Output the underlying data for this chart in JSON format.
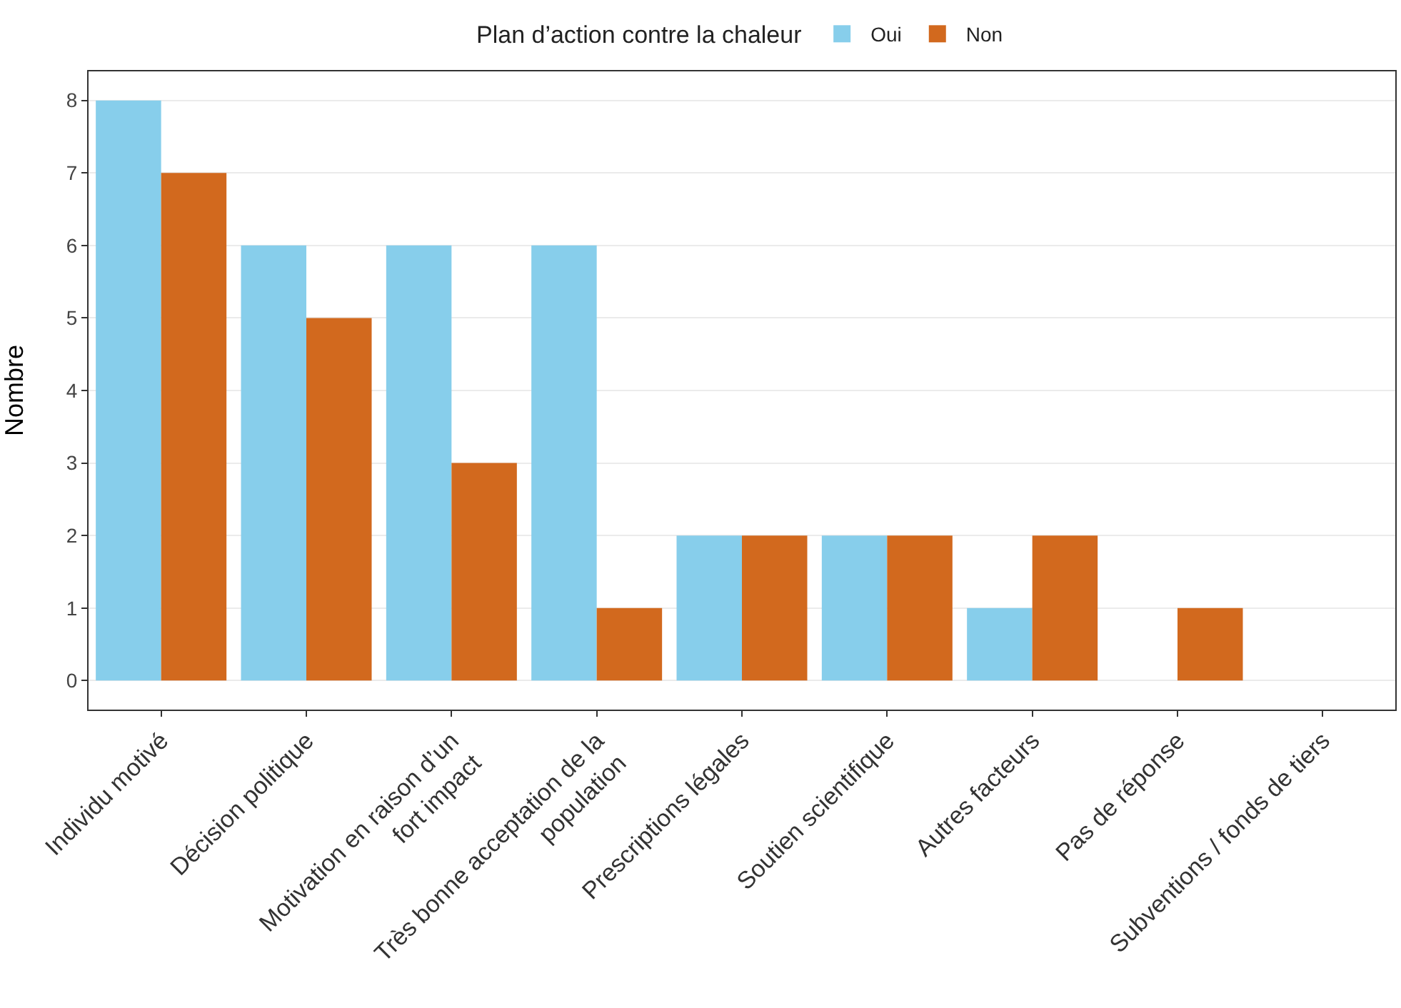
{
  "chart_data": {
    "type": "bar",
    "categories": [
      "Individu motivé",
      "Décision politique",
      "Motivation en raison d’un fort impact",
      "Très bonne acceptation de la population",
      "Prescriptions légales",
      "Soutien scientifique",
      "Autres facteurs",
      "Pas de réponse",
      "Subventions / fonds de tiers"
    ],
    "series": [
      {
        "name": "Oui",
        "color": "#87ceeb",
        "values": [
          8,
          6,
          6,
          6,
          2,
          2,
          1,
          0,
          0
        ]
      },
      {
        "name": "Non",
        "color": "#d2691e",
        "values": [
          7,
          5,
          3,
          1,
          2,
          2,
          2,
          1,
          0
        ]
      }
    ],
    "ylabel": "Nombre",
    "legend_title": "Plan d’action contre la chaleur",
    "ylim": [
      -0.4,
      8.4
    ],
    "yticks": [
      0,
      1,
      2,
      3,
      4,
      5,
      6,
      7,
      8
    ],
    "grid": "y",
    "legend": "top"
  }
}
